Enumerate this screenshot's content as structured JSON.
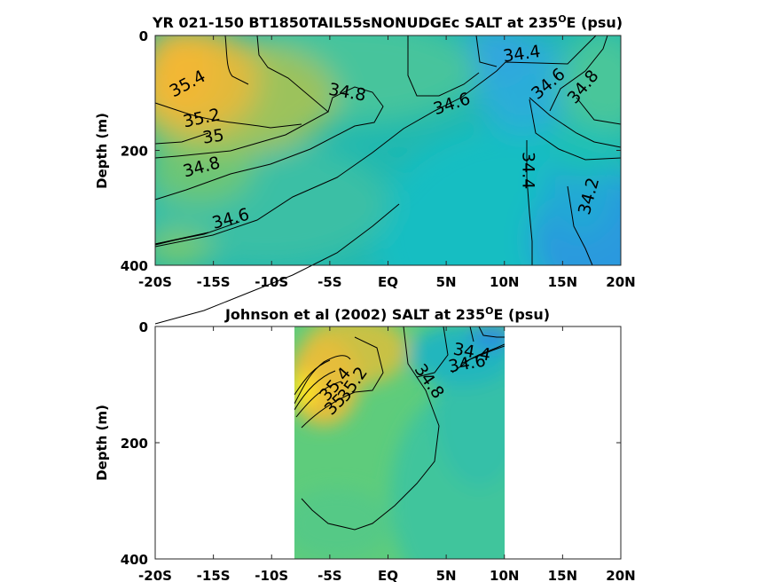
{
  "chart_data": [
    {
      "type": "heatmap",
      "title": "YR 021-150 BT1850TAIL55sNONUDGEc SALT at 235°E (psu)",
      "title_main": "YR 021-150 BT1850TAIL55sNONUDGEc SALT at 235",
      "title_sup": "O",
      "title_tail": "E (psu)",
      "ylabel": "Depth (m)",
      "x_ticks": [
        "-20S",
        "-15S",
        "-10S",
        "-5S",
        "EQ",
        "5N",
        "10N",
        "15N",
        "20N"
      ],
      "x_tick_values": [
        -20,
        -15,
        -10,
        -5,
        0,
        5,
        10,
        15,
        20
      ],
      "xlim": [
        -20,
        20
      ],
      "y_ticks": [
        "0",
        "200",
        "400"
      ],
      "y_tick_values": [
        0,
        200,
        400
      ],
      "ylim": [
        0,
        400
      ],
      "y_reversed": true,
      "contour_labels": [
        {
          "text": "35.4",
          "x": -17.2,
          "y": 85,
          "angle": -28
        },
        {
          "text": "35.2",
          "x": -16.0,
          "y": 145,
          "angle": -12
        },
        {
          "text": "35",
          "x": -15.0,
          "y": 177,
          "angle": -8
        },
        {
          "text": "34.8",
          "x": -16.0,
          "y": 230,
          "angle": -15
        },
        {
          "text": "34.6",
          "x": -13.5,
          "y": 320,
          "angle": -15
        },
        {
          "text": "34.8",
          "x": -3.5,
          "y": 100,
          "angle": 10
        },
        {
          "text": "34.6",
          "x": 5.5,
          "y": 120,
          "angle": -18
        },
        {
          "text": "34.4",
          "x": 11.5,
          "y": 33,
          "angle": -8
        },
        {
          "text": "34.6",
          "x": 13.8,
          "y": 85,
          "angle": -40
        },
        {
          "text": "34.8",
          "x": 16.8,
          "y": 90,
          "angle": -50
        },
        {
          "text": "34.4",
          "x": 12.0,
          "y": 235,
          "angle": 90
        },
        {
          "text": "34.2",
          "x": 17.3,
          "y": 280,
          "angle": -75
        }
      ]
    },
    {
      "type": "heatmap",
      "title": "Johnson et al (2002) SALT at 235°E (psu)",
      "title_main": "Johnson et al (2002) SALT at 235",
      "title_sup": "O",
      "title_tail": "E (psu)",
      "ylabel": "Depth (m)",
      "x_ticks": [
        "-20S",
        "-15S",
        "-10S",
        "-5S",
        "EQ",
        "5N",
        "10N",
        "15N",
        "20N"
      ],
      "x_tick_values": [
        -20,
        -15,
        -10,
        -5,
        0,
        5,
        10,
        15,
        20
      ],
      "xlim": [
        -20,
        20
      ],
      "y_ticks": [
        "0",
        "200",
        "400"
      ],
      "y_tick_values": [
        0,
        200,
        400
      ],
      "ylim": [
        0,
        400
      ],
      "y_reversed": true,
      "data_x_range": [
        -8,
        10
      ],
      "contour_labels": [
        {
          "text": "35.4",
          "x": -4.5,
          "y": 100,
          "angle": -50
        },
        {
          "text": "35.2",
          "x": -3.0,
          "y": 100,
          "angle": -55
        },
        {
          "text": "35",
          "x": -4.5,
          "y": 135,
          "angle": -45
        },
        {
          "text": "34.8",
          "x": 3.5,
          "y": 95,
          "angle": 55
        },
        {
          "text": "34.4",
          "x": 7.2,
          "y": 45,
          "angle": 10
        },
        {
          "text": "34.6",
          "x": 6.8,
          "y": 65,
          "angle": -10
        }
      ]
    }
  ]
}
